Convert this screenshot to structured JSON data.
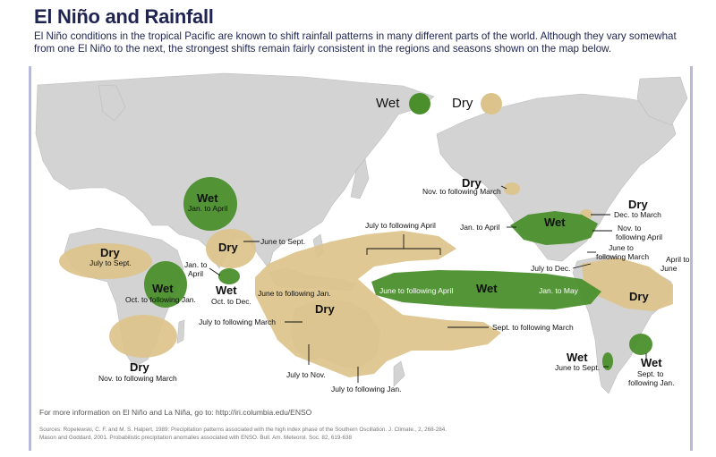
{
  "title": "El Niño and Rainfall",
  "intro": "El Niño conditions in the tropical Pacific are known to shift rainfall patterns in many different parts of the world. Although they vary somewhat from one El Niño to the next, the strongest shifts remain fairly consistent in the regions and seasons shown on the map below.",
  "legend": {
    "wet": "Wet",
    "dry": "Dry"
  },
  "colors": {
    "wet": "#4a8f2c",
    "dry": "#dcc38b",
    "land": "#d3d3d3",
    "ocean": "#ffffff",
    "title": "#1f2452"
  },
  "regions": {
    "east_africa": {
      "word": "Wet",
      "period": "Oct. to following Jan."
    },
    "west_africa": {
      "word": "Dry",
      "period": "July to Sept."
    },
    "southern_africa": {
      "word": "Dry",
      "period": "Nov. to following March"
    },
    "central_asia": {
      "word": "Wet",
      "period": "Jan. to April"
    },
    "india": {
      "word": "Dry",
      "period": "June to Sept."
    },
    "india_jan": {
      "period": "Jan. to April"
    },
    "sri_lanka": {
      "word": "Wet",
      "period": "Oct. to Dec."
    },
    "indonesia": {
      "period": "June to following Jan."
    },
    "australia": {
      "word": "Dry",
      "period1": "July to following March",
      "period2": "July to Nov.",
      "period3": "July to following Jan."
    },
    "central_pacific_dry": {
      "period": "July to following April"
    },
    "equatorial_pacific": {
      "word": "Wet",
      "period1": "June to following April",
      "period2": "Jan. to May"
    },
    "sw_pacific": {
      "period": "Sept. to following March"
    },
    "alaska": {
      "word": "Dry",
      "period": "Nov. to following March"
    },
    "gulf_coast": {
      "word": "Wet",
      "period": "Jan. to April"
    },
    "ohio_valley": {
      "word": "Dry",
      "period": "Dec. to March"
    },
    "se_us": {
      "period": "Nov. to following April"
    },
    "central_america": {
      "period": "July to Dec."
    },
    "caribbean": {
      "period": "June to following March"
    },
    "brazil": {
      "word": "Dry",
      "period": "April to June"
    },
    "chile": {
      "word": "Wet",
      "period": "June to Sept."
    },
    "uruguay": {
      "word": "Wet",
      "period": "Sept. to following Jan."
    }
  },
  "footer": {
    "more_info": "For more information on El Niño and La Niña, go to: http://iri.columbia.edu/ENSO",
    "sources_1": "Sources:  Ropelewski, C. F. and M. S. Halpert, 1989: Precipitation patterns associated with the high index phase of the Southern Oscillation. J. Climate., 2, 268-284.",
    "sources_2": "Mason and Goddard, 2001. Probabilistic precipitation anomalies associated with ENSO. Bull. Am. Meteorol. Soc. 82, 619-638"
  }
}
